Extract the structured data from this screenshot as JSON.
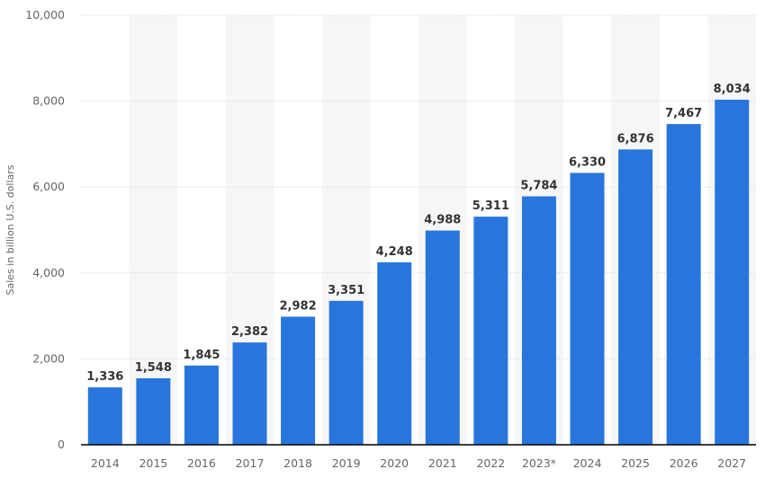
{
  "chart_data": {
    "type": "bar",
    "title": "",
    "xlabel": "",
    "ylabel": "Sales in billion U.S. dollars",
    "categories": [
      "2014",
      "2015",
      "2016",
      "2017",
      "2018",
      "2019",
      "2020",
      "2021",
      "2022",
      "2023*",
      "2024",
      "2025",
      "2026",
      "2027"
    ],
    "values": [
      1336,
      1548,
      1845,
      2382,
      2982,
      3351,
      4248,
      4988,
      5311,
      5784,
      6330,
      6876,
      7467,
      8034
    ],
    "value_labels": [
      "1,336",
      "1,548",
      "1,845",
      "2,382",
      "2,982",
      "3,351",
      "4,248",
      "4,988",
      "5,311",
      "5,784",
      "6,330",
      "6,876",
      "7,467",
      "8,034"
    ],
    "ylim": [
      0,
      10000
    ],
    "yticks": [
      0,
      2000,
      4000,
      6000,
      8000,
      10000
    ],
    "ytick_labels": [
      "0",
      "2,000",
      "4,000",
      "6,000",
      "8,000",
      "10,000"
    ],
    "grid": true,
    "alternating_column_shading": true,
    "colors": {
      "bar": "#2876dd",
      "stripe": "#f6f6f6",
      "grid": "#cfcfcf",
      "axis": "#000000"
    }
  }
}
